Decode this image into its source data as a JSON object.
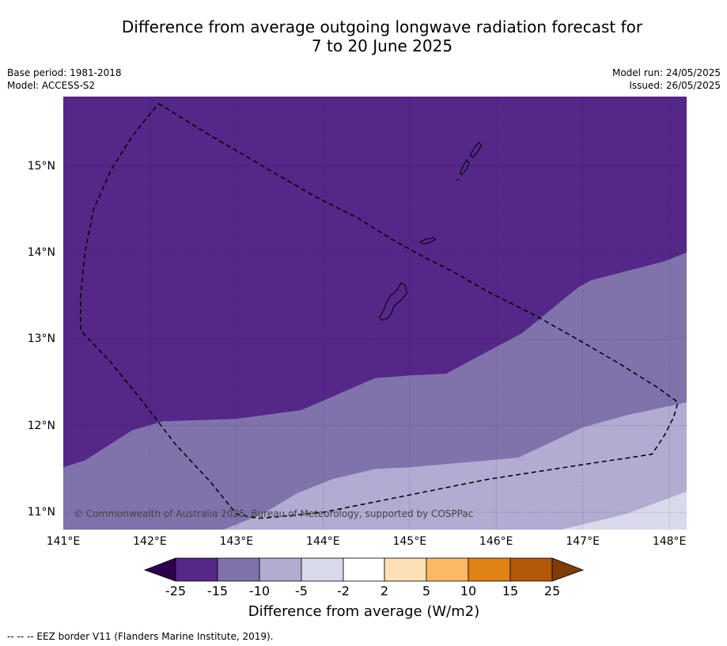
{
  "title_line1": "Difference from average outgoing longwave radiation forecast for",
  "title_line2": "7 to 20 June 2025",
  "base_period": "Base period: 1981-2018",
  "model": "Model: ACCESS-S2",
  "model_run": "Model run: 24/05/2025",
  "issued": "Issued: 26/05/2025",
  "copyright": "© Commonwealth of Australia 2025, Bureau of Meteorology, supported by COSPPac",
  "lat_labels": [
    "15°N",
    "14°N",
    "13°N",
    "12°N",
    "11°N"
  ],
  "lon_labels": [
    "141°E",
    "142°E",
    "143°E",
    "144°E",
    "145°E",
    "146°E",
    "147°E",
    "148°E"
  ],
  "colorbar": {
    "title": "Difference from average (W/m2)",
    "ticks": [
      "-25",
      "-15",
      "-10",
      "-5",
      "-2",
      "2",
      "5",
      "10",
      "15",
      "25"
    ],
    "colors": [
      "#2d004b",
      "#542788",
      "#8073ac",
      "#b2abd2",
      "#d8daeb",
      "#ffffff",
      "#fee0b6",
      "#fdb863",
      "#e08214",
      "#b35806",
      "#7f3b08"
    ]
  },
  "footnote": "--  --  -- EEZ border V11 (Flanders Marine Institute, 2019).",
  "map": {
    "lon_range": [
      141.0,
      148.2
    ],
    "lat_range": [
      10.8,
      15.8
    ],
    "region_colors": {
      "band_minus15_to_minus25": "#542788",
      "band_minus10_to_minus15": "#8073ac",
      "band_minus5_to_minus10": "#b2abd2",
      "band_minus2_to_minus5": "#d8daeb"
    },
    "boundaries": {
      "purple_edge": [
        [
          141.0,
          11.52
        ],
        [
          141.25,
          11.6
        ],
        [
          141.8,
          11.95
        ],
        [
          142.15,
          12.05
        ],
        [
          143.0,
          12.08
        ],
        [
          143.75,
          12.18
        ],
        [
          144.6,
          12.55
        ],
        [
          145.0,
          12.58
        ],
        [
          145.42,
          12.6
        ],
        [
          146.3,
          13.07
        ],
        [
          146.95,
          13.6
        ],
        [
          147.1,
          13.68
        ],
        [
          147.95,
          13.9
        ],
        [
          148.2,
          14.0
        ]
      ],
      "mid_edge": [
        [
          142.0,
          10.8
        ],
        [
          142.85,
          10.8
        ],
        [
          143.3,
          10.98
        ],
        [
          143.7,
          11.22
        ],
        [
          144.1,
          11.38
        ],
        [
          144.6,
          11.5
        ],
        [
          145.0,
          11.52
        ],
        [
          146.25,
          11.63
        ],
        [
          147.0,
          11.98
        ],
        [
          147.5,
          12.12
        ],
        [
          148.2,
          12.27
        ]
      ],
      "light_edge": [
        [
          146.75,
          10.8
        ],
        [
          147.5,
          10.98
        ],
        [
          148.2,
          11.24
        ]
      ]
    },
    "eez_border": [
      [
        142.1,
        15.72
      ],
      [
        142.7,
        15.35
      ],
      [
        143.3,
        15.0
      ],
      [
        143.9,
        14.65
      ],
      [
        144.4,
        14.4
      ],
      [
        144.8,
        14.15
      ],
      [
        145.2,
        13.93
      ],
      [
        145.5,
        13.78
      ],
      [
        145.9,
        13.55
      ],
      [
        146.4,
        13.3
      ],
      [
        146.9,
        13.02
      ],
      [
        147.4,
        12.73
      ],
      [
        147.85,
        12.45
      ],
      [
        148.1,
        12.27
      ],
      [
        148.05,
        12.1
      ],
      [
        147.95,
        11.9
      ],
      [
        147.8,
        11.67
      ],
      [
        147.0,
        11.55
      ],
      [
        145.9,
        11.38
      ],
      [
        144.9,
        11.18
      ],
      [
        144.0,
        11.0
      ],
      [
        143.8,
        10.98
      ],
      [
        143.5,
        10.95
      ],
      [
        143.25,
        10.93
      ],
      [
        143.0,
        10.98
      ],
      [
        142.7,
        11.35
      ],
      [
        142.3,
        11.78
      ],
      [
        141.9,
        12.3
      ],
      [
        141.55,
        12.73
      ],
      [
        141.2,
        13.1
      ],
      [
        141.2,
        13.5
      ],
      [
        141.25,
        14.0
      ],
      [
        141.35,
        14.5
      ],
      [
        141.55,
        14.95
      ],
      [
        141.8,
        15.35
      ],
      [
        142.1,
        15.72
      ]
    ],
    "islands": [
      [
        [
          144.65,
          13.25
        ],
        [
          144.7,
          13.33
        ],
        [
          144.73,
          13.42
        ],
        [
          144.78,
          13.5
        ],
        [
          144.86,
          13.57
        ],
        [
          144.9,
          13.65
        ],
        [
          144.95,
          13.62
        ],
        [
          144.97,
          13.53
        ],
        [
          144.9,
          13.45
        ],
        [
          144.82,
          13.38
        ],
        [
          144.79,
          13.3
        ],
        [
          144.75,
          13.24
        ],
        [
          144.68,
          13.22
        ],
        [
          144.65,
          13.25
        ]
      ],
      [
        [
          145.12,
          14.12
        ],
        [
          145.18,
          14.15
        ],
        [
          145.28,
          14.17
        ],
        [
          145.3,
          14.15
        ],
        [
          145.22,
          14.11
        ],
        [
          145.15,
          14.1
        ],
        [
          145.12,
          14.12
        ]
      ],
      [
        [
          145.58,
          14.92
        ],
        [
          145.62,
          15.0
        ],
        [
          145.66,
          15.07
        ],
        [
          145.69,
          15.03
        ],
        [
          145.65,
          14.95
        ],
        [
          145.6,
          14.9
        ],
        [
          145.58,
          14.92
        ]
      ],
      [
        [
          145.7,
          15.12
        ],
        [
          145.74,
          15.2
        ],
        [
          145.8,
          15.27
        ],
        [
          145.83,
          15.24
        ],
        [
          145.78,
          15.15
        ],
        [
          145.73,
          15.1
        ],
        [
          145.7,
          15.12
        ]
      ],
      [
        [
          145.54,
          14.83
        ],
        [
          145.57,
          14.85
        ]
      ]
    ]
  }
}
